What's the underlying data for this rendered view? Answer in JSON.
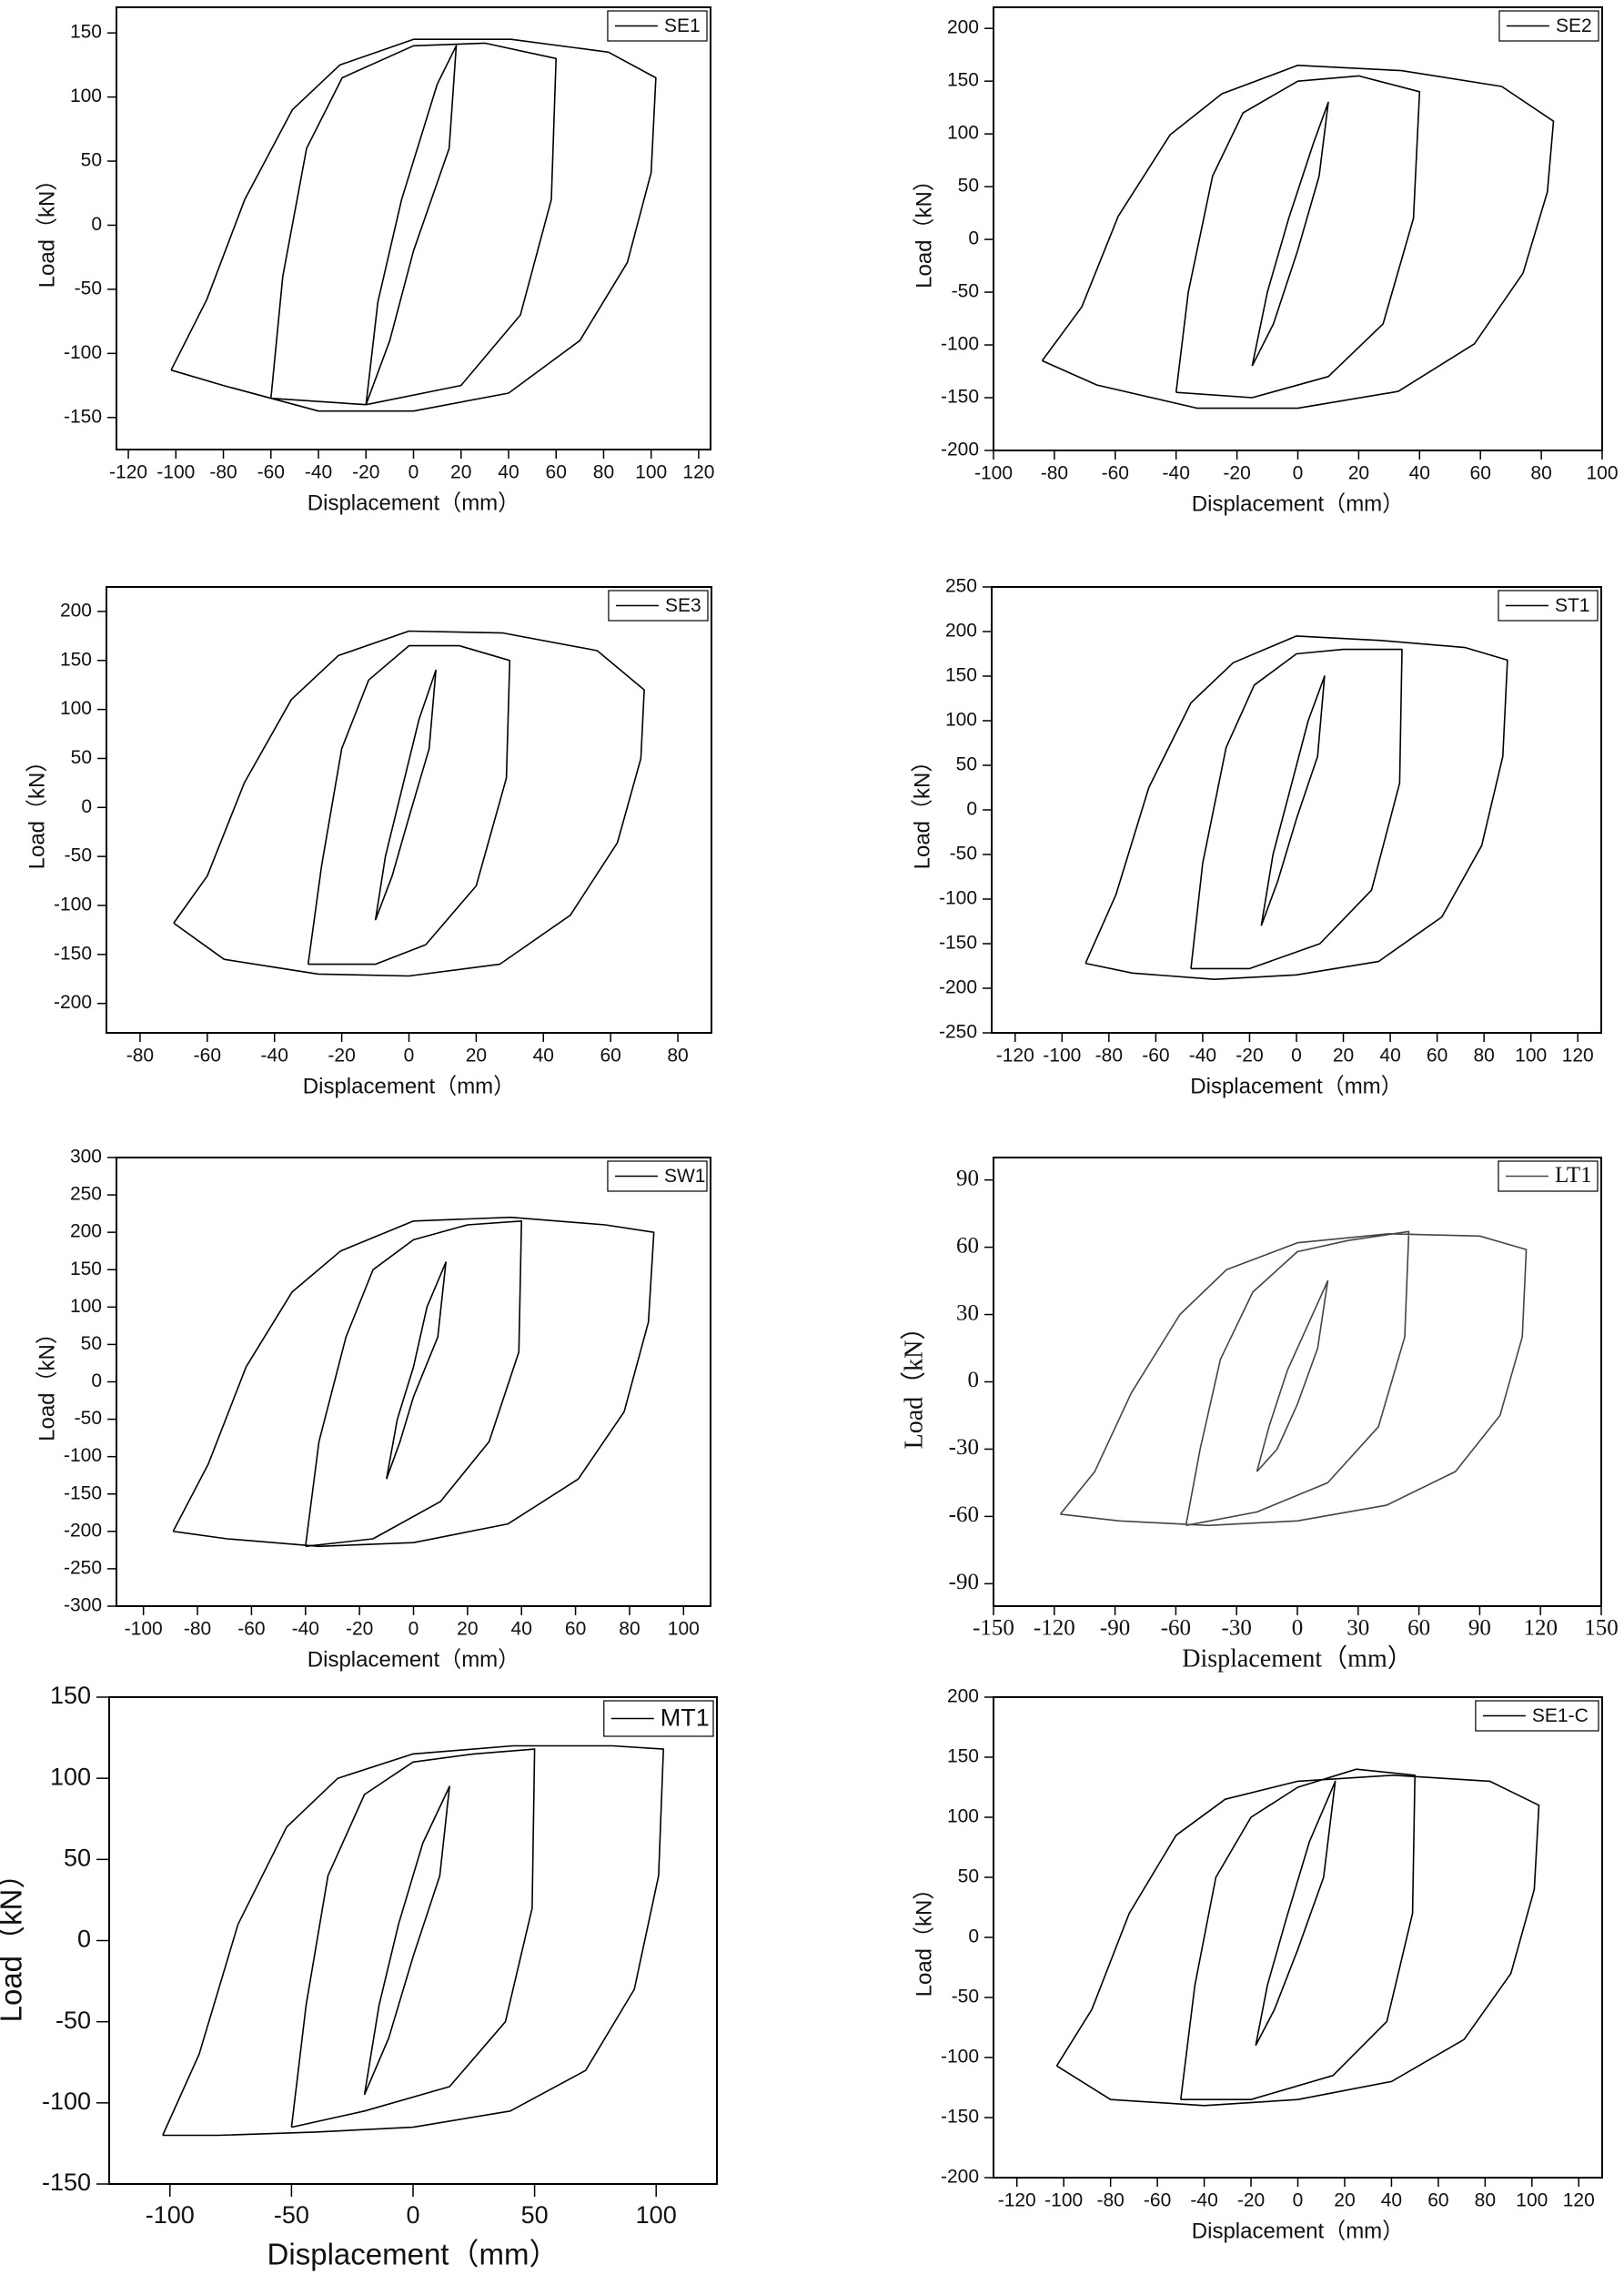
{
  "chart_data": [
    {
      "type": "line",
      "xlabel": "Displacement（mm）",
      "ylabel": "Load（kN）",
      "xlim": [
        -125,
        125
      ],
      "ylim": [
        -175,
        170
      ],
      "xticks": [
        -120,
        -100,
        -80,
        -60,
        -40,
        -20,
        0,
        20,
        40,
        60,
        80,
        100,
        120
      ],
      "yticks": [
        -150,
        -100,
        -50,
        0,
        50,
        100,
        150
      ],
      "legend": "upper right",
      "series": [
        {
          "name": "SE1",
          "color": "#000000",
          "x": [
            -102,
            -87,
            -71,
            -51,
            -31,
            0,
            41,
            82,
            102,
            100,
            90,
            70,
            40,
            0,
            -40,
            -80,
            -102,
            null,
            -60,
            -55,
            -45,
            -30,
            0,
            30,
            60,
            58,
            45,
            20,
            -20,
            -60,
            null,
            -20,
            -15,
            -5,
            10,
            18,
            15,
            0,
            -10,
            -20
          ],
          "y": [
            -113,
            -58,
            20,
            90,
            125,
            145,
            145,
            135,
            115,
            41,
            -29,
            -90,
            -131,
            -145,
            -145,
            -125,
            -113,
            null,
            -135,
            -40,
            60,
            115,
            140,
            142,
            130,
            20,
            -70,
            -125,
            -140,
            -135,
            null,
            -140,
            -60,
            20,
            110,
            140,
            60,
            -20,
            -90,
            -140
          ]
        }
      ]
    },
    {
      "type": "line",
      "xlabel": "Displacement（mm）",
      "ylabel": "Load（kN）",
      "xlim": [
        -100,
        100
      ],
      "ylim": [
        -200,
        220
      ],
      "xticks": [
        -100,
        -80,
        -60,
        -40,
        -20,
        0,
        20,
        40,
        60,
        80,
        100
      ],
      "yticks": [
        -200,
        -150,
        -100,
        -50,
        0,
        50,
        100,
        150,
        200
      ],
      "legend": "upper right",
      "series": [
        {
          "name": "SE2",
          "color": "#000000",
          "x": [
            -84,
            -71,
            -59,
            -42,
            -25,
            0,
            34,
            67,
            84,
            82,
            74,
            58,
            33,
            0,
            -33,
            -66,
            -84,
            null,
            -40,
            -36,
            -28,
            -18,
            0,
            20,
            40,
            38,
            28,
            10,
            -15,
            -40,
            null,
            -15,
            -10,
            -3,
            5,
            10,
            7,
            0,
            -8,
            -15
          ],
          "y": [
            -115,
            -64,
            22,
            99,
            138,
            165,
            160,
            145,
            112,
            45,
            -32,
            -99,
            -144,
            -160,
            -160,
            -138,
            -115,
            null,
            -145,
            -50,
            60,
            120,
            150,
            155,
            140,
            20,
            -80,
            -130,
            -150,
            -145,
            null,
            -120,
            -50,
            20,
            90,
            130,
            60,
            -10,
            -80,
            -120
          ]
        }
      ]
    },
    {
      "type": "line",
      "xlabel": "Displacement（mm）",
      "ylabel": "Load（kN）",
      "xlim": [
        -90,
        90
      ],
      "ylim": [
        -230,
        225
      ],
      "xticks": [
        -80,
        -60,
        -40,
        -20,
        0,
        20,
        40,
        60,
        80
      ],
      "yticks": [
        -200,
        -150,
        -100,
        -50,
        0,
        50,
        100,
        150,
        200
      ],
      "legend": "upper right",
      "series": [
        {
          "name": "SE3",
          "color": "#000000",
          "x": [
            -70,
            -60,
            -49,
            -35,
            -21,
            0,
            28,
            56,
            70,
            69,
            62,
            48,
            27,
            0,
            -27,
            -55,
            -70,
            null,
            -30,
            -26,
            -20,
            -12,
            0,
            15,
            30,
            29,
            20,
            5,
            -10,
            -30,
            null,
            -10,
            -7,
            -2,
            3,
            8,
            6,
            0,
            -5,
            -10
          ],
          "y": [
            -118,
            -70,
            25,
            110,
            155,
            180,
            178,
            160,
            120,
            50,
            -36,
            -110,
            -160,
            -172,
            -170,
            -155,
            -118,
            null,
            -160,
            -60,
            60,
            130,
            165,
            165,
            150,
            30,
            -80,
            -140,
            -160,
            -160,
            null,
            -115,
            -50,
            20,
            90,
            140,
            60,
            -10,
            -70,
            -115
          ]
        }
      ]
    },
    {
      "type": "line",
      "xlabel": "Displacement（mm）",
      "ylabel": "Load（kN）",
      "xlim": [
        -130,
        130
      ],
      "ylim": [
        -250,
        250
      ],
      "xticks": [
        -120,
        -100,
        -80,
        -60,
        -40,
        -20,
        0,
        20,
        40,
        60,
        80,
        100,
        120
      ],
      "yticks": [
        -250,
        -200,
        -150,
        -100,
        -50,
        0,
        50,
        100,
        150,
        200,
        250
      ],
      "legend": "upper right",
      "series": [
        {
          "name": "ST1",
          "color": "#000000",
          "x": [
            -90,
            -77,
            -63,
            -45,
            -27,
            0,
            36,
            72,
            90,
            88,
            79,
            62,
            35,
            0,
            -35,
            -70,
            -90,
            null,
            -45,
            -40,
            -30,
            -18,
            0,
            20,
            45,
            44,
            32,
            10,
            -20,
            -45,
            null,
            -15,
            -10,
            -3,
            5,
            12,
            9,
            0,
            -8,
            -15
          ],
          "y": [
            -172,
            -95,
            25,
            120,
            165,
            195,
            190,
            182,
            168,
            60,
            -40,
            -120,
            -170,
            -185,
            -190,
            -183,
            -172,
            null,
            -178,
            -60,
            70,
            140,
            175,
            180,
            180,
            30,
            -90,
            -150,
            -178,
            -178,
            null,
            -130,
            -50,
            20,
            100,
            150,
            60,
            -10,
            -80,
            -130
          ]
        }
      ]
    },
    {
      "type": "line",
      "xlabel": "Displacement（mm）",
      "ylabel": "Load（kN）",
      "xlim": [
        -110,
        110
      ],
      "ylim": [
        -300,
        300
      ],
      "xticks": [
        -100,
        -80,
        -60,
        -40,
        -20,
        0,
        20,
        40,
        60,
        80,
        100
      ],
      "yticks": [
        -300,
        -250,
        -200,
        -150,
        -100,
        -50,
        0,
        50,
        100,
        150,
        200,
        250,
        300
      ],
      "legend": "upper right",
      "series": [
        {
          "name": "SW1",
          "color": "#000000",
          "x": [
            -89,
            -76,
            -62,
            -45,
            -27,
            0,
            36,
            71,
            89,
            87,
            78,
            61,
            35,
            0,
            -35,
            -69,
            -89,
            null,
            -40,
            -35,
            -25,
            -15,
            0,
            20,
            40,
            39,
            28,
            10,
            -15,
            -40,
            null,
            -10,
            -6,
            0,
            5,
            12,
            9,
            0,
            -5,
            -10
          ],
          "y": [
            -200,
            -110,
            20,
            120,
            175,
            215,
            220,
            210,
            200,
            80,
            -40,
            -130,
            -190,
            -215,
            -220,
            -210,
            -200,
            null,
            -220,
            -80,
            60,
            150,
            190,
            210,
            215,
            40,
            -80,
            -160,
            -210,
            -220,
            null,
            -130,
            -50,
            20,
            100,
            160,
            60,
            -20,
            -80,
            -130
          ]
        }
      ]
    },
    {
      "type": "line",
      "xlabel": "Displacement（mm）",
      "ylabel": "Load（kN）",
      "xlim": [
        -150,
        150
      ],
      "ylim": [
        -100,
        100
      ],
      "xticks": [
        -150,
        -120,
        -90,
        -60,
        -30,
        0,
        30,
        60,
        90,
        120,
        150
      ],
      "yticks": [
        -90,
        -60,
        -30,
        0,
        30,
        60,
        90
      ],
      "legend": "upper right",
      "series": [
        {
          "name": "LT1",
          "color": "#444444",
          "x": [
            -117,
            -100,
            -82,
            -58,
            -35,
            0,
            45,
            90,
            113,
            111,
            100,
            78,
            44,
            0,
            -44,
            -88,
            -117,
            null,
            -55,
            -48,
            -38,
            -22,
            0,
            25,
            55,
            53,
            40,
            15,
            -20,
            -55,
            null,
            -20,
            -14,
            -5,
            5,
            15,
            10,
            0,
            -10,
            -20
          ],
          "y": [
            -59,
            -40,
            -5,
            30,
            50,
            62,
            66,
            65,
            59,
            20,
            -15,
            -40,
            -55,
            -62,
            -64,
            -62,
            -59,
            null,
            -64,
            -30,
            10,
            40,
            58,
            63,
            67,
            20,
            -20,
            -45,
            -58,
            -64,
            null,
            -40,
            -20,
            5,
            25,
            45,
            15,
            -10,
            -30,
            -40
          ]
        }
      ]
    },
    {
      "type": "line",
      "xlabel": "Displacement（mm）",
      "ylabel": "Load（kN）",
      "xlim": [
        -125,
        125
      ],
      "ylim": [
        -150,
        150
      ],
      "xticks": [
        -100,
        -50,
        0,
        50,
        100
      ],
      "yticks": [
        -150,
        -100,
        -50,
        0,
        50,
        100,
        150
      ],
      "legend": "upper right",
      "series": [
        {
          "name": "MT1",
          "color": "#000000",
          "x": [
            -103,
            -88,
            -72,
            -52,
            -31,
            0,
            41,
            82,
            103,
            101,
            91,
            71,
            40,
            0,
            -40,
            -80,
            -103,
            null,
            -50,
            -44,
            -35,
            -20,
            0,
            25,
            50,
            49,
            38,
            15,
            -20,
            -50,
            null,
            -20,
            -14,
            -6,
            4,
            15,
            11,
            0,
            -10,
            -20
          ],
          "y": [
            -120,
            -70,
            10,
            70,
            100,
            115,
            120,
            120,
            118,
            40,
            -30,
            -80,
            -105,
            -115,
            -118,
            -120,
            -120,
            null,
            -115,
            -40,
            40,
            90,
            110,
            115,
            118,
            20,
            -50,
            -90,
            -105,
            -115,
            null,
            -95,
            -40,
            10,
            60,
            95,
            40,
            -10,
            -60,
            -95
          ]
        }
      ]
    },
    {
      "type": "line",
      "xlabel": "Displacement（mm）",
      "ylabel": "Load（kN）",
      "xlim": [
        -130,
        130
      ],
      "ylim": [
        -200,
        200
      ],
      "xticks": [
        -120,
        -100,
        -80,
        -60,
        -40,
        -20,
        0,
        20,
        40,
        60,
        80,
        100,
        120
      ],
      "yticks": [
        -200,
        -150,
        -100,
        -50,
        0,
        50,
        100,
        150,
        200
      ],
      "legend": "upper right",
      "series": [
        {
          "name": "SE1-C",
          "color": "#000000",
          "x": [
            -103,
            -88,
            -72,
            -52,
            -31,
            0,
            41,
            82,
            103,
            101,
            91,
            71,
            40,
            0,
            -40,
            -80,
            -103,
            null,
            -50,
            -44,
            -35,
            -20,
            0,
            25,
            50,
            49,
            38,
            15,
            -20,
            -50,
            null,
            -18,
            -13,
            -5,
            5,
            16,
            11,
            0,
            -10,
            -18
          ],
          "y": [
            -107,
            -60,
            20,
            85,
            115,
            130,
            135,
            130,
            110,
            40,
            -30,
            -85,
            -120,
            -135,
            -140,
            -135,
            -107,
            null,
            -135,
            -40,
            50,
            100,
            125,
            140,
            135,
            20,
            -70,
            -115,
            -135,
            -135,
            null,
            -90,
            -40,
            15,
            80,
            130,
            50,
            -10,
            -60,
            -90
          ]
        }
      ]
    }
  ]
}
